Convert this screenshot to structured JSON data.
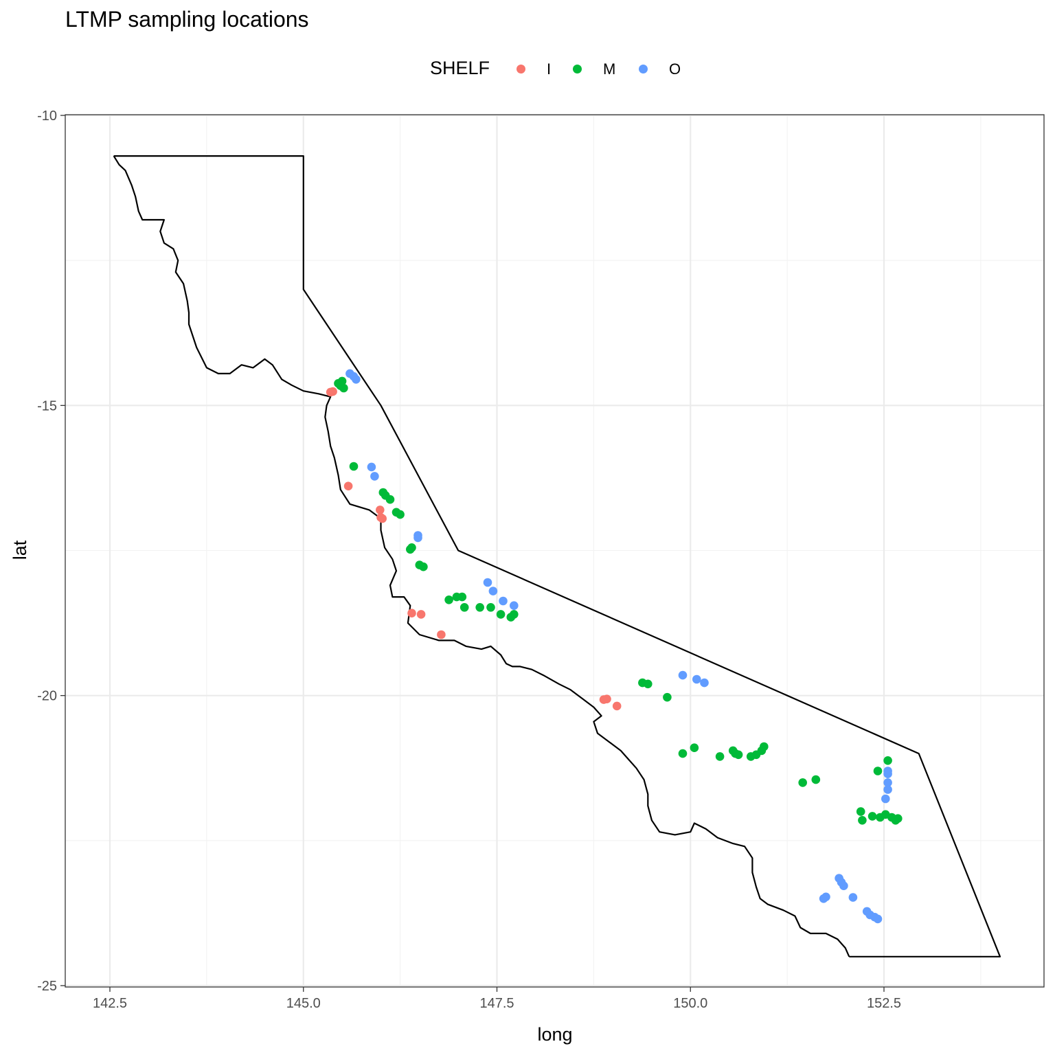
{
  "chart_data": {
    "type": "scatter",
    "title": "LTMP sampling locations",
    "xlabel": "long",
    "ylabel": "lat",
    "xlim": [
      142.5,
      154.0
    ],
    "ylim": [
      -25,
      -10
    ],
    "x_ticks": [
      "142.5",
      "145.0",
      "147.5",
      "150.0",
      "152.5"
    ],
    "x_tick_values": [
      142.5,
      145.0,
      147.5,
      150.0,
      152.5
    ],
    "y_ticks": [
      "-10",
      "-15",
      "-20",
      "-25"
    ],
    "y_tick_values": [
      -10,
      -15,
      -20,
      -25
    ],
    "grid": true,
    "legend": {
      "title": "SHELF",
      "position": "top",
      "entries": [
        {
          "label": "I",
          "color": "#F8766D"
        },
        {
          "label": "M",
          "color": "#00BA38"
        },
        {
          "label": "O",
          "color": "#619CFF"
        }
      ]
    },
    "boundary_outline": [
      [
        142.55,
        -10.7
      ],
      [
        145.0,
        -10.7
      ],
      [
        145.0,
        -13.0
      ],
      [
        146.0,
        -15.0
      ],
      [
        147.0,
        -17.5
      ],
      [
        152.95,
        -21.0
      ],
      [
        154.0,
        -24.5
      ],
      [
        152.05,
        -24.5
      ]
    ],
    "coastline": [
      [
        142.55,
        -10.7
      ],
      [
        142.62,
        -10.85
      ],
      [
        142.7,
        -10.95
      ],
      [
        142.78,
        -11.2
      ],
      [
        142.83,
        -11.4
      ],
      [
        142.87,
        -11.65
      ],
      [
        142.92,
        -11.8
      ],
      [
        143.2,
        -11.8
      ],
      [
        143.15,
        -12.0
      ],
      [
        143.2,
        -12.2
      ],
      [
        143.32,
        -12.3
      ],
      [
        143.38,
        -12.5
      ],
      [
        143.35,
        -12.7
      ],
      [
        143.45,
        -12.9
      ],
      [
        143.5,
        -13.2
      ],
      [
        143.52,
        -13.4
      ],
      [
        143.52,
        -13.6
      ],
      [
        143.57,
        -13.8
      ],
      [
        143.62,
        -14.0
      ],
      [
        143.75,
        -14.35
      ],
      [
        143.9,
        -14.45
      ],
      [
        144.05,
        -14.45
      ],
      [
        144.2,
        -14.3
      ],
      [
        144.35,
        -14.35
      ],
      [
        144.5,
        -14.2
      ],
      [
        144.6,
        -14.3
      ],
      [
        144.72,
        -14.55
      ],
      [
        144.85,
        -14.65
      ],
      [
        145.0,
        -14.75
      ],
      [
        145.2,
        -14.8
      ],
      [
        145.35,
        -14.85
      ],
      [
        145.3,
        -15.0
      ],
      [
        145.28,
        -15.2
      ],
      [
        145.32,
        -15.45
      ],
      [
        145.35,
        -15.7
      ],
      [
        145.4,
        -15.9
      ],
      [
        145.45,
        -16.2
      ],
      [
        145.48,
        -16.45
      ],
      [
        145.6,
        -16.7
      ],
      [
        145.85,
        -16.8
      ],
      [
        146.0,
        -16.95
      ],
      [
        146.0,
        -17.15
      ],
      [
        146.05,
        -17.45
      ],
      [
        146.15,
        -17.65
      ],
      [
        146.2,
        -17.85
      ],
      [
        146.12,
        -18.1
      ],
      [
        146.15,
        -18.3
      ],
      [
        146.3,
        -18.3
      ],
      [
        146.38,
        -18.45
      ],
      [
        146.35,
        -18.75
      ],
      [
        146.5,
        -18.95
      ],
      [
        146.75,
        -19.05
      ],
      [
        146.95,
        -19.05
      ],
      [
        147.1,
        -19.15
      ],
      [
        147.3,
        -19.2
      ],
      [
        147.42,
        -19.15
      ],
      [
        147.55,
        -19.3
      ],
      [
        147.62,
        -19.45
      ],
      [
        147.7,
        -19.5
      ],
      [
        147.8,
        -19.5
      ],
      [
        147.95,
        -19.55
      ],
      [
        148.1,
        -19.65
      ],
      [
        148.3,
        -19.8
      ],
      [
        148.45,
        -19.9
      ],
      [
        148.6,
        -20.05
      ],
      [
        148.75,
        -20.2
      ],
      [
        148.85,
        -20.35
      ],
      [
        148.75,
        -20.45
      ],
      [
        148.8,
        -20.65
      ],
      [
        148.95,
        -20.8
      ],
      [
        149.1,
        -20.95
      ],
      [
        149.2,
        -21.1
      ],
      [
        149.3,
        -21.25
      ],
      [
        149.4,
        -21.45
      ],
      [
        149.45,
        -21.7
      ],
      [
        149.45,
        -21.9
      ],
      [
        149.5,
        -22.15
      ],
      [
        149.6,
        -22.35
      ],
      [
        149.8,
        -22.4
      ],
      [
        150.0,
        -22.35
      ],
      [
        150.05,
        -22.2
      ],
      [
        150.2,
        -22.3
      ],
      [
        150.35,
        -22.45
      ],
      [
        150.55,
        -22.55
      ],
      [
        150.7,
        -22.6
      ],
      [
        150.8,
        -22.8
      ],
      [
        150.8,
        -23.05
      ],
      [
        150.85,
        -23.3
      ],
      [
        150.9,
        -23.5
      ],
      [
        151.0,
        -23.6
      ],
      [
        151.2,
        -23.7
      ],
      [
        151.35,
        -23.8
      ],
      [
        151.42,
        -24.0
      ],
      [
        151.55,
        -24.1
      ],
      [
        151.75,
        -24.1
      ],
      [
        151.9,
        -24.2
      ],
      [
        152.0,
        -24.35
      ],
      [
        152.05,
        -24.5
      ]
    ],
    "series": [
      {
        "name": "I",
        "color": "#F8766D",
        "points": [
          [
            145.35,
            -14.77
          ],
          [
            145.38,
            -14.76
          ],
          [
            145.58,
            -16.39
          ],
          [
            145.99,
            -16.8
          ],
          [
            146.0,
            -16.93
          ],
          [
            146.02,
            -16.95
          ],
          [
            146.4,
            -18.58
          ],
          [
            146.52,
            -18.6
          ],
          [
            146.78,
            -18.95
          ],
          [
            148.88,
            -20.07
          ],
          [
            148.92,
            -20.06
          ],
          [
            149.05,
            -20.18
          ]
        ]
      },
      {
        "name": "M",
        "color": "#00BA38",
        "points": [
          [
            145.45,
            -14.62
          ],
          [
            145.5,
            -14.58
          ],
          [
            145.52,
            -14.7
          ],
          [
            145.48,
            -14.66
          ],
          [
            145.65,
            -16.05
          ],
          [
            146.03,
            -16.5
          ],
          [
            146.06,
            -16.55
          ],
          [
            146.12,
            -16.62
          ],
          [
            146.2,
            -16.84
          ],
          [
            146.25,
            -16.88
          ],
          [
            146.38,
            -17.48
          ],
          [
            146.4,
            -17.45
          ],
          [
            146.5,
            -17.75
          ],
          [
            146.55,
            -17.78
          ],
          [
            146.88,
            -18.35
          ],
          [
            146.98,
            -18.3
          ],
          [
            147.05,
            -18.3
          ],
          [
            147.08,
            -18.48
          ],
          [
            147.28,
            -18.48
          ],
          [
            147.42,
            -18.48
          ],
          [
            147.55,
            -18.6
          ],
          [
            147.68,
            -18.65
          ],
          [
            147.72,
            -18.6
          ],
          [
            149.38,
            -19.78
          ],
          [
            149.45,
            -19.8
          ],
          [
            149.7,
            -20.03
          ],
          [
            149.9,
            -21.0
          ],
          [
            150.05,
            -20.9
          ],
          [
            150.38,
            -21.05
          ],
          [
            150.55,
            -20.95
          ],
          [
            150.58,
            -21.0
          ],
          [
            150.62,
            -21.02
          ],
          [
            150.78,
            -21.05
          ],
          [
            150.85,
            -21.02
          ],
          [
            150.92,
            -20.95
          ],
          [
            150.95,
            -20.88
          ],
          [
            151.45,
            -21.5
          ],
          [
            151.62,
            -21.45
          ],
          [
            152.2,
            -22.0
          ],
          [
            152.22,
            -22.15
          ],
          [
            152.35,
            -22.08
          ],
          [
            152.42,
            -21.3
          ],
          [
            152.45,
            -22.1
          ],
          [
            152.52,
            -22.05
          ],
          [
            152.55,
            -21.12
          ],
          [
            152.6,
            -22.1
          ],
          [
            152.65,
            -22.15
          ],
          [
            152.68,
            -22.12
          ]
        ]
      },
      {
        "name": "O",
        "color": "#619CFF",
        "points": [
          [
            145.6,
            -14.45
          ],
          [
            145.65,
            -14.5
          ],
          [
            145.68,
            -14.55
          ],
          [
            145.88,
            -16.06
          ],
          [
            145.92,
            -16.22
          ],
          [
            146.48,
            -17.24
          ],
          [
            146.48,
            -17.28
          ],
          [
            147.38,
            -18.05
          ],
          [
            147.45,
            -18.2
          ],
          [
            147.58,
            -18.37
          ],
          [
            147.72,
            -18.45
          ],
          [
            149.9,
            -19.65
          ],
          [
            150.08,
            -19.72
          ],
          [
            150.18,
            -19.78
          ],
          [
            151.72,
            -23.5
          ],
          [
            151.75,
            -23.47
          ],
          [
            151.92,
            -23.15
          ],
          [
            151.95,
            -23.22
          ],
          [
            151.98,
            -23.28
          ],
          [
            152.1,
            -23.48
          ],
          [
            152.28,
            -23.72
          ],
          [
            152.32,
            -23.78
          ],
          [
            152.38,
            -23.82
          ],
          [
            152.42,
            -23.85
          ],
          [
            152.55,
            -21.3
          ],
          [
            152.55,
            -21.35
          ],
          [
            152.55,
            -21.5
          ],
          [
            152.55,
            -21.62
          ],
          [
            152.52,
            -21.78
          ]
        ]
      }
    ]
  }
}
